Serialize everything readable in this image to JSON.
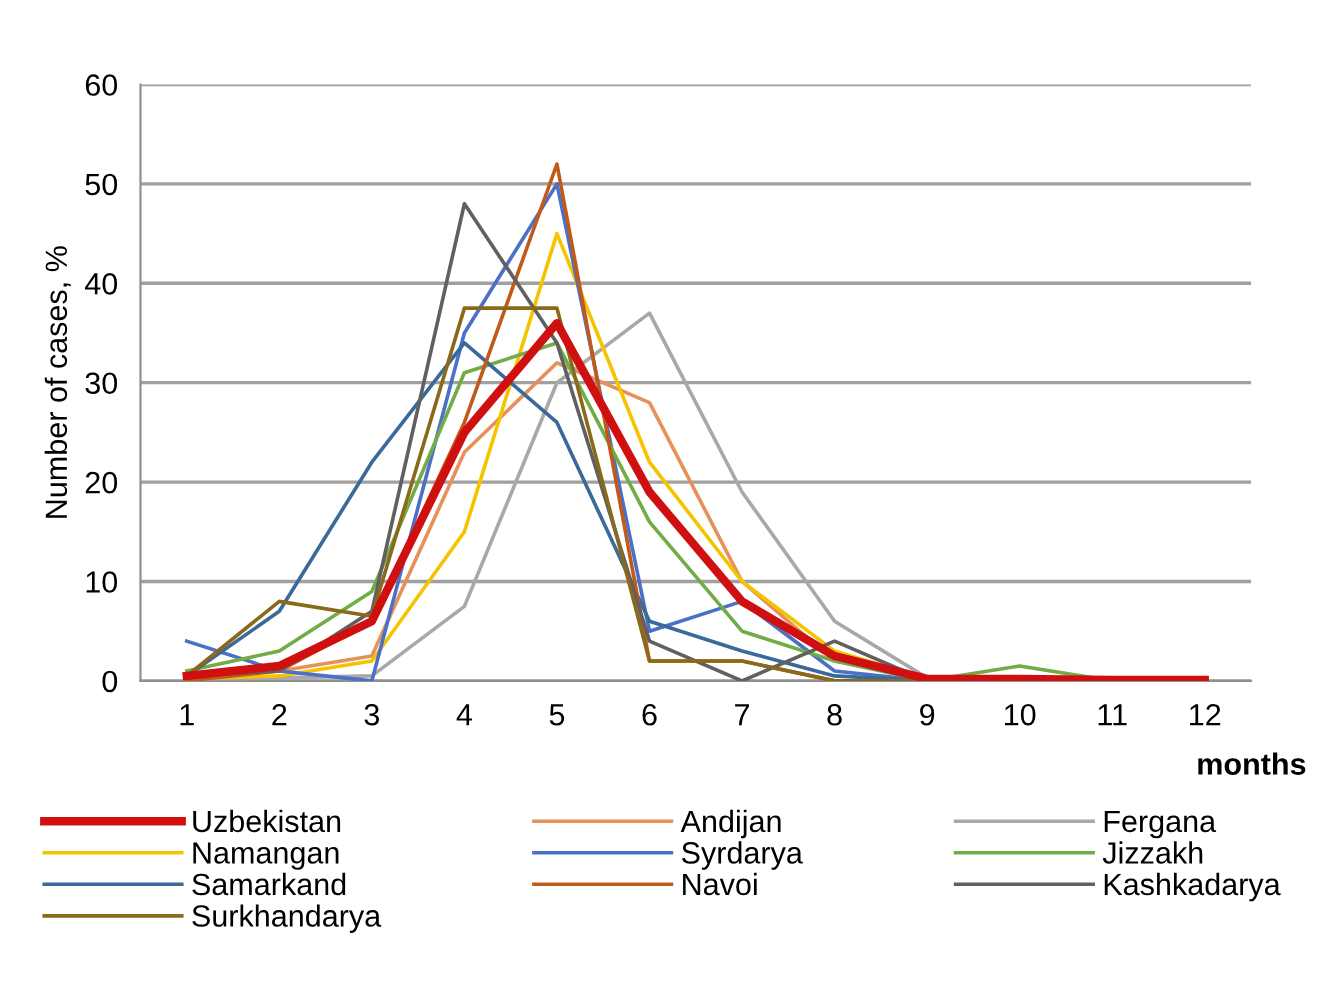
{
  "chart_data": {
    "type": "line",
    "xlabel": "months",
    "ylabel": "Number of cases, %",
    "x": [
      1,
      2,
      3,
      4,
      5,
      6,
      7,
      8,
      9,
      10,
      11,
      12
    ],
    "xlim": [
      0.5,
      12.5
    ],
    "xticks": [
      1,
      2,
      3,
      4,
      5,
      6,
      7,
      8,
      9,
      10,
      11,
      12
    ],
    "ylim": [
      0,
      60
    ],
    "yticks": [
      0,
      10,
      20,
      30,
      40,
      50,
      60
    ],
    "grid": "y",
    "legend": "bottom",
    "marker": "none",
    "line_style": "solid",
    "series": [
      {
        "name": "Uzbekistan",
        "color": "#d01010",
        "values": [
          0.5,
          1.5,
          6,
          25,
          36,
          19,
          8,
          2.5,
          0.2,
          0.2,
          0.1,
          0.1
        ]
      },
      {
        "name": "Andijan",
        "color": "#e8905a",
        "values": [
          0.5,
          1,
          2.5,
          23,
          32,
          28,
          10,
          2,
          0.2,
          0.1,
          0.1,
          0.1
        ]
      },
      {
        "name": "Fergana",
        "color": "#a8a8a8",
        "values": [
          0.2,
          0.3,
          0.5,
          7.5,
          30,
          37,
          19,
          6,
          0.3,
          0.2,
          0.1,
          0.1
        ]
      },
      {
        "name": "Namangan",
        "color": "#f5c400",
        "values": [
          0.2,
          0.5,
          2,
          15,
          45,
          22,
          10,
          3,
          0.2,
          null,
          null,
          null
        ]
      },
      {
        "name": "Syrdarya",
        "color": "#4a70c8",
        "values": [
          4,
          1,
          0,
          35,
          50,
          5,
          8,
          1,
          0,
          0,
          null,
          null
        ]
      },
      {
        "name": "Jizzakh",
        "color": "#70ad47",
        "values": [
          1,
          3,
          9,
          31,
          34,
          16,
          5,
          2,
          0,
          1.5,
          0,
          0
        ]
      },
      {
        "name": "Samarkand",
        "color": "#3a6a9a",
        "values": [
          0.5,
          7,
          22,
          34,
          26,
          6,
          3,
          0.5,
          0,
          0,
          null,
          null
        ]
      },
      {
        "name": "Navoi",
        "color": "#c05a1a",
        "values": [
          0,
          1,
          6,
          26,
          52,
          2,
          2,
          0,
          0,
          0,
          0,
          0
        ]
      },
      {
        "name": "Kashkadarya",
        "color": "#606060",
        "values": [
          0.5,
          1,
          7,
          48,
          34,
          4,
          0,
          4,
          0,
          0,
          0,
          0
        ]
      },
      {
        "name": "Surkhandarya",
        "color": "#8a6a1a",
        "values": [
          0.5,
          8,
          6.5,
          37.5,
          37.5,
          2,
          2,
          0,
          0,
          0,
          0,
          0
        ]
      }
    ]
  }
}
